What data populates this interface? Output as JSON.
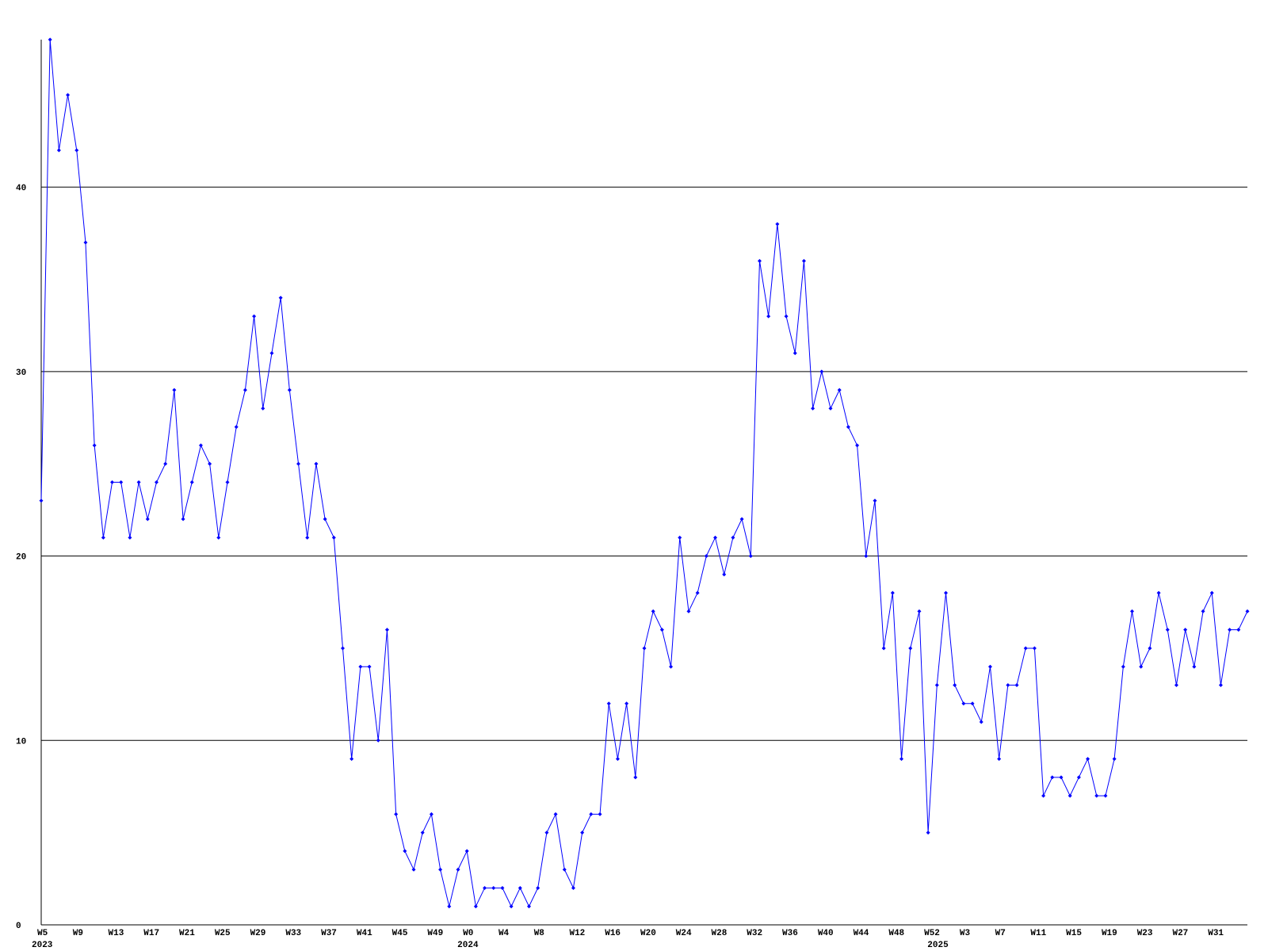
{
  "chart_data": {
    "type": "line",
    "categories": [
      "W5",
      null,
      null,
      null,
      "W9",
      null,
      null,
      null,
      "W13",
      null,
      null,
      null,
      "W17",
      null,
      null,
      null,
      "W21",
      null,
      null,
      null,
      "W25",
      null,
      null,
      null,
      "W29",
      null,
      null,
      null,
      "W33",
      null,
      null,
      null,
      "W37",
      null,
      null,
      null,
      "W41",
      null,
      null,
      null,
      "W45",
      null,
      null,
      null,
      "W49",
      null,
      null,
      null,
      "W0",
      null,
      null,
      null,
      "W4",
      null,
      null,
      null,
      "W8",
      null,
      null,
      null,
      "W12",
      null,
      null,
      null,
      "W16",
      null,
      null,
      null,
      "W20",
      null,
      null,
      null,
      "W24",
      null,
      null,
      null,
      "W28",
      null,
      null,
      null,
      "W32",
      null,
      null,
      null,
      "W36",
      null,
      null,
      null,
      "W40",
      null,
      null,
      null,
      "W44",
      null,
      null,
      null,
      "W48",
      null,
      null,
      null,
      "W52",
      null,
      null,
      null,
      "W3",
      null,
      null,
      null,
      "W7",
      null,
      null,
      null,
      "W11",
      null,
      null,
      null,
      "W15",
      null,
      null,
      null,
      "W19",
      null,
      null,
      null,
      "W23",
      null,
      null,
      null,
      "W27",
      null,
      null,
      null,
      "W31",
      null,
      null,
      null,
      null
    ],
    "years": [
      "2023",
      null,
      null,
      null,
      null,
      null,
      null,
      null,
      null,
      null,
      null,
      null,
      null,
      null,
      null,
      null,
      null,
      null,
      null,
      null,
      null,
      null,
      null,
      null,
      null,
      null,
      null,
      null,
      null,
      null,
      null,
      null,
      null,
      null,
      null,
      null,
      null,
      null,
      null,
      null,
      null,
      null,
      null,
      null,
      null,
      null,
      null,
      null,
      "2024",
      null,
      null,
      null,
      null,
      null,
      null,
      null,
      null,
      null,
      null,
      null,
      null,
      null,
      null,
      null,
      null,
      null,
      null,
      null,
      null,
      null,
      null,
      null,
      null,
      null,
      null,
      null,
      null,
      null,
      null,
      null,
      null,
      null,
      null,
      null,
      null,
      null,
      null,
      null,
      null,
      null,
      null,
      null,
      null,
      null,
      null,
      null,
      null,
      null,
      null,
      null,
      null,
      "2025",
      null,
      null,
      null,
      null,
      null,
      null,
      null,
      null,
      null,
      null,
      null,
      null,
      null,
      null,
      null,
      null,
      null,
      null,
      null,
      null,
      null,
      null,
      null,
      null,
      null,
      null,
      null,
      null,
      null,
      null,
      null,
      null,
      null,
      null,
      null
    ],
    "series": [
      {
        "color": "#0000ff",
        "values": [
          23,
          48,
          42,
          45,
          42,
          37,
          26,
          21,
          24,
          24,
          21,
          24,
          22,
          24,
          25,
          29,
          22,
          24,
          26,
          25,
          21,
          24,
          27,
          29,
          33,
          28,
          31,
          34,
          29,
          25,
          21,
          25,
          22,
          21,
          15,
          9,
          14,
          14,
          10,
          16,
          6,
          4,
          3,
          5,
          6,
          3,
          1,
          3,
          4,
          1,
          2,
          2,
          2,
          1,
          2,
          1,
          2,
          5,
          6,
          3,
          2,
          5,
          6,
          6,
          12,
          9,
          12,
          8,
          15,
          17,
          16,
          14,
          21,
          17,
          18,
          20,
          21,
          19,
          21,
          22,
          20,
          36,
          33,
          38,
          33,
          31,
          36,
          28,
          30,
          28,
          29,
          27,
          26,
          20,
          23,
          15,
          18,
          9,
          15,
          17,
          5,
          13,
          18,
          13,
          12,
          12,
          11,
          14,
          9,
          13,
          13,
          15,
          15,
          7,
          8,
          8,
          7,
          8,
          9,
          7,
          7,
          9,
          14,
          17,
          14,
          15,
          18,
          16,
          13,
          16,
          14,
          17,
          18,
          13,
          16,
          16,
          17
        ]
      }
    ],
    "ylim": [
      0,
      48
    ],
    "yticks": [
      0,
      10,
      20,
      30,
      40
    ],
    "grid": true
  }
}
